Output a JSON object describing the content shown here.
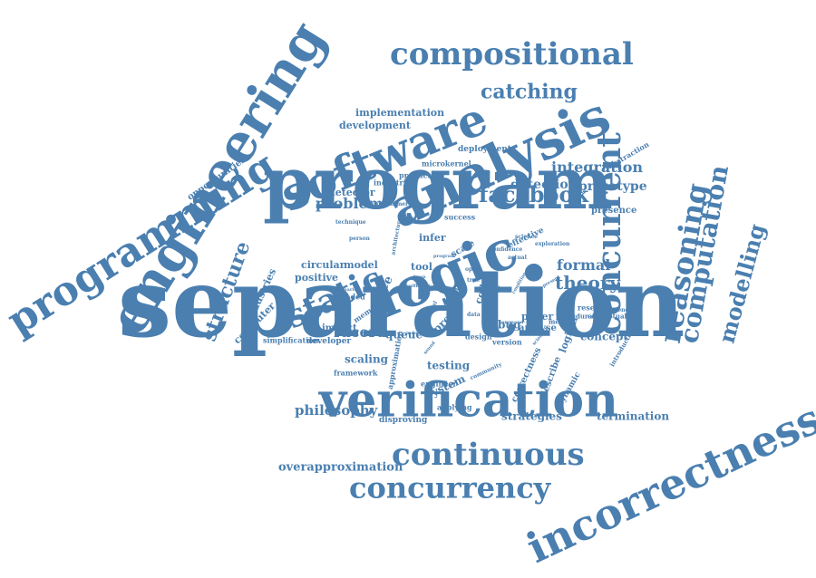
{
  "colors": {
    "text": "#4a7fb0",
    "background": "#ffffff"
  },
  "words": [
    {
      "text": "separation"
    },
    {
      "text": "program"
    },
    {
      "text": "verification"
    },
    {
      "text": "engineering"
    },
    {
      "text": "programming"
    },
    {
      "text": "analysis"
    },
    {
      "text": "logic"
    },
    {
      "text": "software"
    },
    {
      "text": "incorrectness"
    },
    {
      "text": "concurrent"
    },
    {
      "text": "reasoning"
    },
    {
      "text": "compositional"
    },
    {
      "text": "continuous"
    },
    {
      "text": "concurrency"
    },
    {
      "text": "computation"
    },
    {
      "text": "modelling"
    },
    {
      "text": "static"
    },
    {
      "text": "catching"
    },
    {
      "text": "facebook"
    },
    {
      "text": "structure"
    },
    {
      "text": "theory"
    },
    {
      "text": "formal"
    },
    {
      "text": "problem"
    },
    {
      "text": "integration"
    },
    {
      "text": "detection"
    },
    {
      "text": "prototype"
    },
    {
      "text": "racerd"
    },
    {
      "text": "philosophy"
    },
    {
      "text": "overapproximation"
    },
    {
      "text": "strategies"
    },
    {
      "text": "termination"
    },
    {
      "text": "concept"
    },
    {
      "text": "testing"
    },
    {
      "text": "system"
    },
    {
      "text": "scaling"
    },
    {
      "text": "queue"
    },
    {
      "text": "implementation"
    },
    {
      "text": "development"
    },
    {
      "text": "deployment"
    },
    {
      "text": "microkernel"
    },
    {
      "text": "production"
    },
    {
      "text": "industrial"
    },
    {
      "text": "opportunities"
    },
    {
      "text": "detector"
    },
    {
      "text": "industries"
    },
    {
      "text": "computer"
    },
    {
      "text": "circular"
    },
    {
      "text": "model"
    },
    {
      "text": "positive"
    },
    {
      "text": "race"
    },
    {
      "text": "impact"
    },
    {
      "text": "developer"
    },
    {
      "text": "simplification"
    },
    {
      "text": "tool"
    },
    {
      "text": "infer"
    },
    {
      "text": "proof"
    },
    {
      "text": "code"
    },
    {
      "text": "work"
    },
    {
      "text": "bug"
    },
    {
      "text": "paper"
    },
    {
      "text": "analyse"
    },
    {
      "text": "logical"
    },
    {
      "text": "correctness"
    },
    {
      "text": "describe"
    },
    {
      "text": "dynamic"
    },
    {
      "text": "disproving"
    },
    {
      "text": "applying"
    },
    {
      "text": "framework"
    },
    {
      "text": "engineer"
    },
    {
      "text": "approximation"
    },
    {
      "text": "presence"
    },
    {
      "text": "success"
    },
    {
      "text": "effective"
    },
    {
      "text": "scale"
    },
    {
      "text": "abstraction"
    },
    {
      "text": "design"
    },
    {
      "text": "version"
    },
    {
      "text": "memory"
    },
    {
      "text": "extended"
    },
    {
      "text": "research"
    },
    {
      "text": "procedural"
    },
    {
      "text": "conceptual"
    },
    {
      "text": "method"
    },
    {
      "text": "introduction"
    },
    {
      "text": "recurrence"
    },
    {
      "text": "science"
    },
    {
      "text": "confidence"
    },
    {
      "text": "exploration"
    },
    {
      "text": "programmer"
    },
    {
      "text": "technique"
    },
    {
      "text": "person"
    },
    {
      "text": "architecture"
    },
    {
      "text": "community"
    },
    {
      "text": "data"
    },
    {
      "text": "meta"
    },
    {
      "text": "actual"
    },
    {
      "text": "open"
    },
    {
      "text": "true"
    },
    {
      "text": "test"
    },
    {
      "text": "local"
    },
    {
      "text": "symbol"
    },
    {
      "text": "industry"
    },
    {
      "text": "sound"
    },
    {
      "text": "scientist"
    },
    {
      "text": "command"
    },
    {
      "text": "condition"
    },
    {
      "text": "body"
    },
    {
      "text": "scenario"
    },
    {
      "text": "frame"
    },
    {
      "text": "present"
    },
    {
      "text": "program"
    },
    {
      "text": "heap"
    },
    {
      "text": "sufficient"
    }
  ]
}
